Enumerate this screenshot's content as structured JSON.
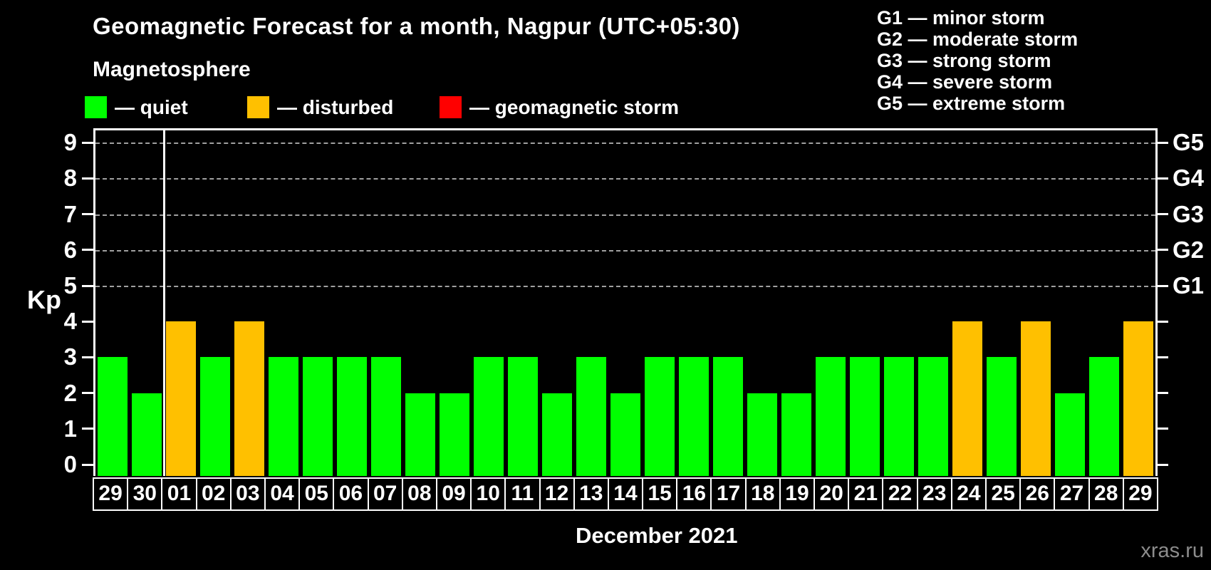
{
  "subtitle": "Magnetosphere",
  "legend": {
    "items": [
      {
        "label": "— quiet",
        "color": "#00ff00"
      },
      {
        "label": "— disturbed",
        "color": "#ffc000"
      },
      {
        "label": "— geomagnetic storm",
        "color": "#ff0000"
      }
    ]
  },
  "g_legend": {
    "lines": [
      "G1 — minor storm",
      "G2 — moderate storm",
      "G3 — strong storm",
      "G4 — severe storm",
      "G5 — extreme storm"
    ]
  },
  "watermark": "xras.ru",
  "colors": {
    "quiet": "#00ff00",
    "disturbed": "#ffc000",
    "storm": "#ff0000",
    "axis": "#ffffff",
    "gridline": "#a0a0a0",
    "background": "#000000",
    "watermark": "#8c8c8c"
  },
  "chart_data": {
    "type": "bar",
    "title": "Geomagnetic Forecast for a month, Nagpur (UTC+05:30)",
    "ylabel": "Kp",
    "xlabel": "December 2021",
    "ylim": [
      0,
      9.4
    ],
    "yticks": [
      0,
      1,
      2,
      3,
      4,
      5,
      6,
      7,
      8,
      9
    ],
    "gridlines_at_kp": [
      5,
      6,
      7,
      8,
      9
    ],
    "right_axis_labels": [
      {
        "kp": 5,
        "label": "G1"
      },
      {
        "kp": 6,
        "label": "G2"
      },
      {
        "kp": 7,
        "label": "G3"
      },
      {
        "kp": 8,
        "label": "G4"
      },
      {
        "kp": 9,
        "label": "G5"
      }
    ],
    "categories": [
      "29",
      "30",
      "01",
      "02",
      "03",
      "04",
      "05",
      "06",
      "07",
      "08",
      "09",
      "10",
      "11",
      "12",
      "13",
      "14",
      "15",
      "16",
      "17",
      "18",
      "19",
      "20",
      "21",
      "22",
      "23",
      "24",
      "25",
      "26",
      "27",
      "28",
      "29"
    ],
    "values": [
      3,
      2,
      4,
      3,
      4,
      3,
      3,
      3,
      3,
      2,
      2,
      3,
      3,
      2,
      3,
      2,
      3,
      3,
      3,
      2,
      2,
      3,
      3,
      3,
      3,
      4,
      3,
      4,
      2,
      3,
      4
    ],
    "color_rule": {
      "quiet_kp_max": 3,
      "disturbed_kp_max": 4,
      "storm_kp_min": 5
    },
    "month_separator_after_index": 1,
    "legend_position": "top-left",
    "grid": "dashed horizontal lines at Kp 5–9 only"
  }
}
